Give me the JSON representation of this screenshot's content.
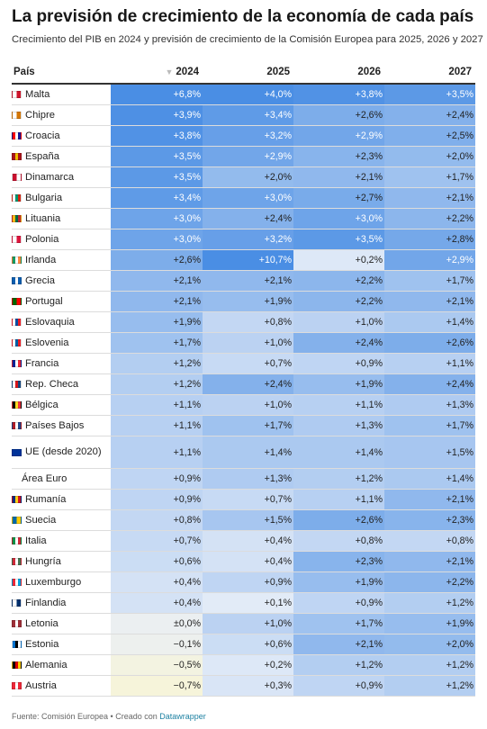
{
  "header": {
    "title": "La previsión de crecimiento de la economía de cada país",
    "subtitle": "Crecimiento del PIB en 2024 y previsión de crecimiento de la Comisión Europea para 2025, 2026 y 2027"
  },
  "table": {
    "columns": [
      "País",
      "2024",
      "2025",
      "2026",
      "2027"
    ],
    "sort_icon": "sort-descending-icon",
    "rows": [
      {
        "country": "Malta",
        "flag": [
          "#ffffff",
          "#cf142b"
        ],
        "values": [
          "+6,8%",
          "+4,0%",
          "+3,8%",
          "+3,5%"
        ],
        "nums": [
          6.8,
          4.0,
          3.8,
          3.5
        ]
      },
      {
        "country": "Chipre",
        "flag": [
          "#ffffff",
          "#d47600"
        ],
        "values": [
          "+3,9%",
          "+3,4%",
          "+2,6%",
          "+2,4%"
        ],
        "nums": [
          3.9,
          3.4,
          2.6,
          2.4
        ]
      },
      {
        "country": "Croacia",
        "flag": [
          "#ff0000",
          "#ffffff",
          "#171796"
        ],
        "values": [
          "+3,8%",
          "+3,2%",
          "+2,9%",
          "+2,5%"
        ],
        "nums": [
          3.8,
          3.2,
          2.9,
          2.5
        ]
      },
      {
        "country": "España",
        "flag": [
          "#aa151b",
          "#f1bf00",
          "#aa151b"
        ],
        "values": [
          "+3,5%",
          "+2,9%",
          "+2,3%",
          "+2,0%"
        ],
        "nums": [
          3.5,
          2.9,
          2.3,
          2.0
        ]
      },
      {
        "country": "Dinamarca",
        "flag": [
          "#c8102e",
          "#ffffff"
        ],
        "values": [
          "+3,5%",
          "+2,0%",
          "+2,1%",
          "+1,7%"
        ],
        "nums": [
          3.5,
          2.0,
          2.1,
          1.7
        ]
      },
      {
        "country": "Bulgaria",
        "flag": [
          "#ffffff",
          "#00966e",
          "#d62612"
        ],
        "values": [
          "+3,4%",
          "+3,0%",
          "+2,7%",
          "+2,1%"
        ],
        "nums": [
          3.4,
          3.0,
          2.7,
          2.1
        ]
      },
      {
        "country": "Lituania",
        "flag": [
          "#fdb913",
          "#006a44",
          "#c1272d"
        ],
        "values": [
          "+3,0%",
          "+2,4%",
          "+3,0%",
          "+2,2%"
        ],
        "nums": [
          3.0,
          2.4,
          3.0,
          2.2
        ]
      },
      {
        "country": "Polonia",
        "flag": [
          "#ffffff",
          "#dc143c"
        ],
        "values": [
          "+3,0%",
          "+3,2%",
          "+3,5%",
          "+2,8%"
        ],
        "nums": [
          3.0,
          3.2,
          3.5,
          2.8
        ]
      },
      {
        "country": "Irlanda",
        "flag": [
          "#169b62",
          "#ffffff",
          "#ff883e"
        ],
        "values": [
          "+2,6%",
          "+10,7%",
          "+0,2%",
          "+2,9%"
        ],
        "nums": [
          2.6,
          10.7,
          0.2,
          2.9
        ]
      },
      {
        "country": "Grecia",
        "flag": [
          "#0d5eaf",
          "#ffffff",
          "#0d5eaf"
        ],
        "values": [
          "+2,1%",
          "+2,1%",
          "+2,2%",
          "+1,7%"
        ],
        "nums": [
          2.1,
          2.1,
          2.2,
          1.7
        ]
      },
      {
        "country": "Portugal",
        "flag": [
          "#006600",
          "#ff0000"
        ],
        "values": [
          "+2,1%",
          "+1,9%",
          "+2,2%",
          "+2,1%"
        ],
        "nums": [
          2.1,
          1.9,
          2.2,
          2.1
        ]
      },
      {
        "country": "Eslovaquia",
        "flag": [
          "#ffffff",
          "#0b4ea2",
          "#ee1c25"
        ],
        "values": [
          "+1,9%",
          "+0,8%",
          "+1,0%",
          "+1,4%"
        ],
        "nums": [
          1.9,
          0.8,
          1.0,
          1.4
        ]
      },
      {
        "country": "Eslovenia",
        "flag": [
          "#ffffff",
          "#005da4",
          "#ed1c24"
        ],
        "values": [
          "+1,7%",
          "+1,0%",
          "+2,4%",
          "+2,6%"
        ],
        "nums": [
          1.7,
          1.0,
          2.4,
          2.6
        ]
      },
      {
        "country": "Francia",
        "flag": [
          "#002395",
          "#ffffff",
          "#ed2939"
        ],
        "values": [
          "+1,2%",
          "+0,7%",
          "+0,9%",
          "+1,1%"
        ],
        "nums": [
          1.2,
          0.7,
          0.9,
          1.1
        ]
      },
      {
        "country": "Rep. Checa",
        "flag": [
          "#ffffff",
          "#d7141a",
          "#11457e"
        ],
        "values": [
          "+1,2%",
          "+2,4%",
          "+1,9%",
          "+2,4%"
        ],
        "nums": [
          1.2,
          2.4,
          1.9,
          2.4
        ]
      },
      {
        "country": "Bélgica",
        "flag": [
          "#000000",
          "#fdda24",
          "#ef3340"
        ],
        "values": [
          "+1,1%",
          "+1,0%",
          "+1,1%",
          "+1,3%"
        ],
        "nums": [
          1.1,
          1.0,
          1.1,
          1.3
        ]
      },
      {
        "country": "Países Bajos",
        "flag": [
          "#ae1c28",
          "#ffffff",
          "#21468b"
        ],
        "values": [
          "+1,1%",
          "+1,7%",
          "+1,3%",
          "+1,7%"
        ],
        "nums": [
          1.1,
          1.7,
          1.3,
          1.7
        ]
      },
      {
        "country": "UE (desde 2020)",
        "flag": [
          "#003399",
          "#003399"
        ],
        "values": [
          "+1,1%",
          "+1,4%",
          "+1,4%",
          "+1,5%"
        ],
        "nums": [
          1.1,
          1.4,
          1.4,
          1.5
        ],
        "tall": true
      },
      {
        "country": "Área Euro",
        "flag": [],
        "values": [
          "+0,9%",
          "+1,3%",
          "+1,2%",
          "+1,4%"
        ],
        "nums": [
          0.9,
          1.3,
          1.2,
          1.4
        ]
      },
      {
        "country": "Rumanía",
        "flag": [
          "#002b7f",
          "#fcd116",
          "#ce1126"
        ],
        "values": [
          "+0,9%",
          "+0,7%",
          "+1,1%",
          "+2,1%"
        ],
        "nums": [
          0.9,
          0.7,
          1.1,
          2.1
        ]
      },
      {
        "country": "Suecia",
        "flag": [
          "#006aa7",
          "#fecc00"
        ],
        "values": [
          "+0,8%",
          "+1,5%",
          "+2,6%",
          "+2,3%"
        ],
        "nums": [
          0.8,
          1.5,
          2.6,
          2.3
        ]
      },
      {
        "country": "Italia",
        "flag": [
          "#009246",
          "#ffffff",
          "#ce2b37"
        ],
        "values": [
          "+0,7%",
          "+0,4%",
          "+0,8%",
          "+0,8%"
        ],
        "nums": [
          0.7,
          0.4,
          0.8,
          0.8
        ]
      },
      {
        "country": "Hungría",
        "flag": [
          "#ce2939",
          "#ffffff",
          "#477050"
        ],
        "values": [
          "+0,6%",
          "+0,4%",
          "+2,3%",
          "+2,1%"
        ],
        "nums": [
          0.6,
          0.4,
          2.3,
          2.1
        ]
      },
      {
        "country": "Luxemburgo",
        "flag": [
          "#ed2939",
          "#ffffff",
          "#00a1de"
        ],
        "values": [
          "+0,4%",
          "+0,9%",
          "+1,9%",
          "+2,2%"
        ],
        "nums": [
          0.4,
          0.9,
          1.9,
          2.2
        ]
      },
      {
        "country": "Finlandia",
        "flag": [
          "#ffffff",
          "#002f6c"
        ],
        "values": [
          "+0,4%",
          "+0,1%",
          "+0,9%",
          "+1,2%"
        ],
        "nums": [
          0.4,
          0.1,
          0.9,
          1.2
        ]
      },
      {
        "country": "Letonia",
        "flag": [
          "#9e3039",
          "#ffffff",
          "#9e3039"
        ],
        "values": [
          "±0,0%",
          "+1,0%",
          "+1,7%",
          "+1,9%"
        ],
        "nums": [
          0.0,
          1.0,
          1.7,
          1.9
        ]
      },
      {
        "country": "Estonia",
        "flag": [
          "#0072ce",
          "#000000",
          "#ffffff"
        ],
        "values": [
          "−0,1%",
          "+0,6%",
          "+2,1%",
          "+2,0%"
        ],
        "nums": [
          -0.1,
          0.6,
          2.1,
          2.0
        ]
      },
      {
        "country": "Alemania",
        "flag": [
          "#000000",
          "#dd0000",
          "#ffce00"
        ],
        "values": [
          "−0,5%",
          "+0,2%",
          "+1,2%",
          "+1,2%"
        ],
        "nums": [
          -0.5,
          0.2,
          1.2,
          1.2
        ]
      },
      {
        "country": "Austria",
        "flag": [
          "#ed2939",
          "#ffffff",
          "#ed2939"
        ],
        "values": [
          "−0,7%",
          "+0,3%",
          "+0,9%",
          "+1,2%"
        ],
        "nums": [
          -0.7,
          0.3,
          0.9,
          1.2
        ]
      }
    ]
  },
  "footer": {
    "source": "Fuente: Comisión Europea • Creado con",
    "link": "Datawrapper"
  },
  "colors": {
    "scale_low": "#f6f4da",
    "scale_mid": "#e8eef8",
    "scale_high": "#4a8ee4",
    "text_dark": "#222222",
    "text_light": "#ffffff"
  }
}
